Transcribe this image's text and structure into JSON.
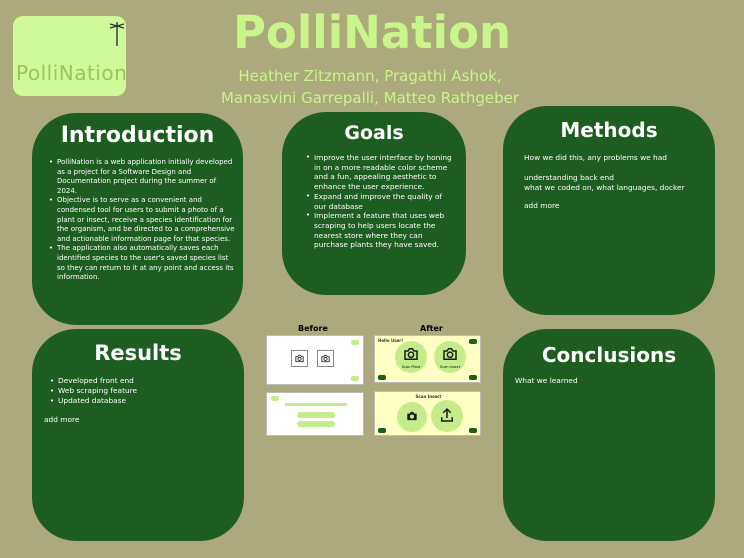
{
  "logo": {
    "text": "PolliNation"
  },
  "title": "PolliNation",
  "authors": {
    "line1": "Heather Zitzmann, Pragathi Ashok,",
    "line2": "Manasvini Garrepalli, Matteo Rathgeber"
  },
  "introduction": {
    "title": "Introduction",
    "bullets": [
      "PolliNation is a web application initially developed as a project for a Software Design and Documentation project during the summer of 2024.",
      "Objective is to serve as a convenient and condensed tool for users to submit a photo of a plant or insect, receive a species identification for the organism, and be directed to a comprehensive and actionable information page for that species.",
      " The application also automatically saves each identified species to the user's saved species list so they can return to it at any point and access its information."
    ]
  },
  "goals": {
    "title": "Goals",
    "bullets": [
      " Improve the user interface by honing in on a more readable color scheme and a fun, appealing aesthetic to enhance the user experience.",
      "Expand and improve the quality of our database",
      " Implement a feature that uses web scraping to help users locate the nearest store where they can purchase plants they have saved."
    ]
  },
  "methods": {
    "title": "Methods",
    "line1": "How we did this, any problems we had",
    "line2": "understanding back end",
    "line3": "what we coded on, what languages, docker",
    "line4": "add more"
  },
  "results": {
    "title": "Results",
    "bullets": [
      "Developed front end",
      "Web scraping feature",
      "Updated database"
    ],
    "more": "add more"
  },
  "conclusions": {
    "title": "Conclusions",
    "text": "What we learned"
  },
  "comparison": {
    "before_label": "Before",
    "after_label": "After",
    "after_top_title": "Hello User!",
    "after_left_btn": "Scan Plant",
    "after_right_btn": "Scan Insect",
    "after_bottom_title": "Scan Insect"
  },
  "colors": {
    "background": "#ACA97C",
    "panel": "#1D5E20",
    "accent": "#C9F58A",
    "after_screen": "#FFFFC4"
  }
}
